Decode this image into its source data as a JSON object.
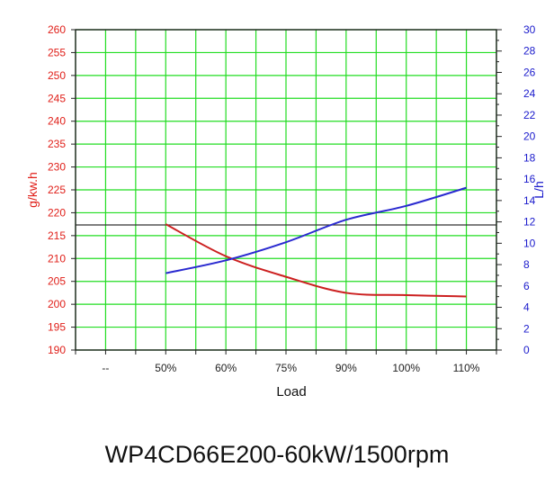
{
  "chart_data": {
    "type": "line",
    "caption": "WP4CD66E200-60kW/1500rpm",
    "xlabel": "Load",
    "categories": [
      "--",
      "50%",
      "60%",
      "75%",
      "90%",
      "100%",
      "110%"
    ],
    "y_left": {
      "label": "g/kw.h",
      "range": [
        190,
        260
      ],
      "step": 5,
      "color": "#e0201a"
    },
    "y_right": {
      "label": "L/h",
      "range": [
        0,
        30
      ],
      "step": 2,
      "color": "#1a1acc"
    },
    "grid": true,
    "grid_color": "#22dd22",
    "series": [
      {
        "axis": "left",
        "color": "#cc2020",
        "x": [
          "50%",
          "60%",
          "75%",
          "90%",
          "100%",
          "110%"
        ],
        "values": [
          217.5,
          210.5,
          206.0,
          202.5,
          202.0,
          201.7
        ]
      },
      {
        "axis": "right",
        "color": "#2a2ad0",
        "x": [
          "50%",
          "60%",
          "75%",
          "90%",
          "100%",
          "110%"
        ],
        "values": [
          7.2,
          8.4,
          10.1,
          12.2,
          13.5,
          15.2
        ]
      }
    ]
  }
}
